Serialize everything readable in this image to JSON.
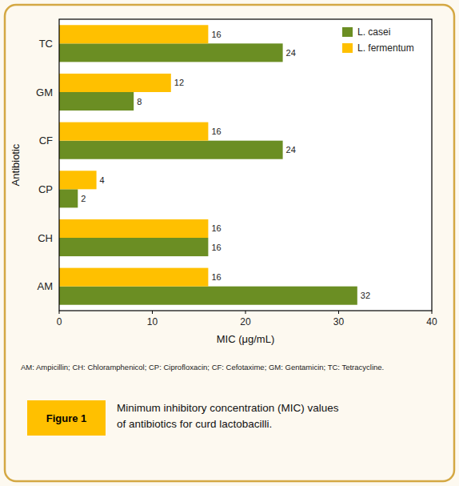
{
  "chart_data": {
    "type": "bar",
    "orientation": "horizontal",
    "categories": [
      "TC",
      "GM",
      "CF",
      "CP",
      "CH",
      "AM"
    ],
    "series": [
      {
        "name": "L. casei",
        "color": "#6b8e23",
        "values": [
          24,
          8,
          24,
          2,
          16,
          32
        ]
      },
      {
        "name": "L. fermentum",
        "color": "#ffc000",
        "values": [
          16,
          12,
          16,
          4,
          16,
          16
        ]
      }
    ],
    "xlabel": "MIC (μg/mL)",
    "ylabel": "Antibiotic",
    "xlim": [
      0,
      40
    ],
    "xticks": [
      0,
      10,
      20,
      30,
      40
    ],
    "grid": false,
    "legend": "upper right",
    "data_labels": true,
    "annotations": [
      {
        "text": "AM: Ampicillin; CH: Chloramphenicol; CP: Ciprofloxacin; CF: Cefotaxime; GM: Gentamicin; TC: Tetracycline."
      },
      {
        "text": "Figure 1",
        "color": "#ffc000"
      },
      {
        "text": "Minimum inhibitory concentration (MIC) values\nof antibiotics for curd lactobacilli."
      }
    ]
  }
}
